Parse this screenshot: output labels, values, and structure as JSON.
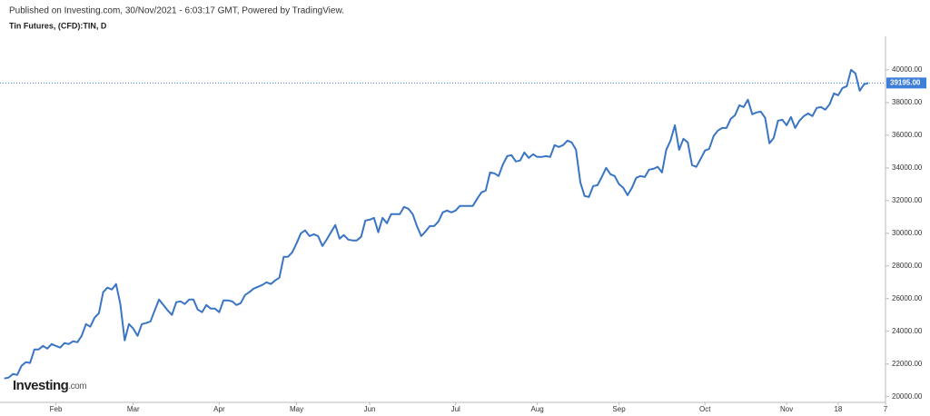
{
  "header": "Published on Investing.com, 30/Nov/2021 - 6:03:17 GMT, Powered by TradingView.",
  "logo": {
    "name": "Investing",
    "suffix": ".com"
  },
  "chart_data": {
    "type": "line",
    "title": "Tin Futures, (CFD):TIN, D",
    "color": "#3a75c4",
    "values": [
      21110,
      21170,
      21390,
      21330,
      21890,
      22110,
      22060,
      22890,
      22890,
      23110,
      22940,
      23220,
      23110,
      23000,
      23280,
      23220,
      23390,
      23330,
      23720,
      24440,
      24280,
      24830,
      25110,
      26390,
      26670,
      26560,
      26890,
      25670,
      23440,
      24440,
      24170,
      23720,
      24440,
      24500,
      24610,
      25280,
      25940,
      25610,
      25280,
      25000,
      25780,
      25830,
      25670,
      25940,
      25940,
      25330,
      25170,
      25610,
      25390,
      25390,
      25170,
      25890,
      25890,
      25830,
      25610,
      25720,
      26220,
      26390,
      26610,
      26720,
      26830,
      27000,
      26890,
      27110,
      27280,
      28560,
      28560,
      28830,
      29390,
      30000,
      30170,
      29830,
      29940,
      29830,
      29220,
      29610,
      30060,
      30500,
      29670,
      29890,
      29610,
      29560,
      29560,
      29780,
      30780,
      30830,
      30940,
      30060,
      30940,
      30610,
      31170,
      31170,
      31170,
      31610,
      31500,
      31170,
      30440,
      29830,
      30110,
      30440,
      30440,
      30720,
      31280,
      31390,
      31280,
      31390,
      31670,
      31670,
      31670,
      31670,
      32110,
      32500,
      32610,
      33720,
      33670,
      33500,
      34220,
      34720,
      34780,
      34390,
      34450,
      34940,
      34610,
      34830,
      34670,
      34670,
      34720,
      34670,
      35390,
      35280,
      35390,
      35670,
      35560,
      35110,
      33110,
      32280,
      32220,
      32890,
      32940,
      33440,
      34000,
      33610,
      33500,
      33000,
      32780,
      32330,
      32780,
      33390,
      33500,
      33440,
      33890,
      33940,
      34060,
      33720,
      35110,
      35670,
      36610,
      35110,
      35780,
      35560,
      34170,
      34060,
      34560,
      35060,
      35170,
      35940,
      36280,
      36440,
      36440,
      37000,
      37220,
      37830,
      37720,
      38170,
      37280,
      37390,
      37440,
      37060,
      35500,
      35830,
      36890,
      36940,
      36610,
      37110,
      36440,
      36890,
      37170,
      37330,
      37170,
      37670,
      37720,
      37560,
      37890,
      38560,
      38440,
      38890,
      39000,
      40000,
      39780,
      38720,
      39110,
      39195
    ],
    "xlim": [
      -1,
      205
    ],
    "xticks": [
      {
        "value": 12,
        "label": "Feb"
      },
      {
        "value": 30,
        "label": "Mar"
      },
      {
        "value": 50,
        "label": "Apr"
      },
      {
        "value": 68,
        "label": "May"
      },
      {
        "value": 85,
        "label": "Jun"
      },
      {
        "value": 105,
        "label": "Jul"
      },
      {
        "value": 124,
        "label": "Aug"
      },
      {
        "value": 143,
        "label": "Sep"
      },
      {
        "value": 163,
        "label": "Oct"
      },
      {
        "value": 182,
        "label": "Nov"
      },
      {
        "value": 194,
        "label": "18"
      },
      {
        "value": 205,
        "label": "7"
      }
    ],
    "ylim": [
      19650,
      42050
    ],
    "yticks": [
      {
        "value": 20000,
        "label": "20000.00"
      },
      {
        "value": 22000,
        "label": "22000.00"
      },
      {
        "value": 24000,
        "label": "24000.00"
      },
      {
        "value": 26000,
        "label": "26000.00"
      },
      {
        "value": 28000,
        "label": "28000.00"
      },
      {
        "value": 30000,
        "label": "30000.00"
      },
      {
        "value": 32000,
        "label": "32000.00"
      },
      {
        "value": 34000,
        "label": "34000.00"
      },
      {
        "value": 36000,
        "label": "36000.00"
      },
      {
        "value": 38000,
        "label": "38000.00"
      },
      {
        "value": 40000,
        "label": "40000.00"
      }
    ],
    "price_line": {
      "value": 39195,
      "label": "39195.00",
      "color": "#3d7ed9"
    }
  }
}
